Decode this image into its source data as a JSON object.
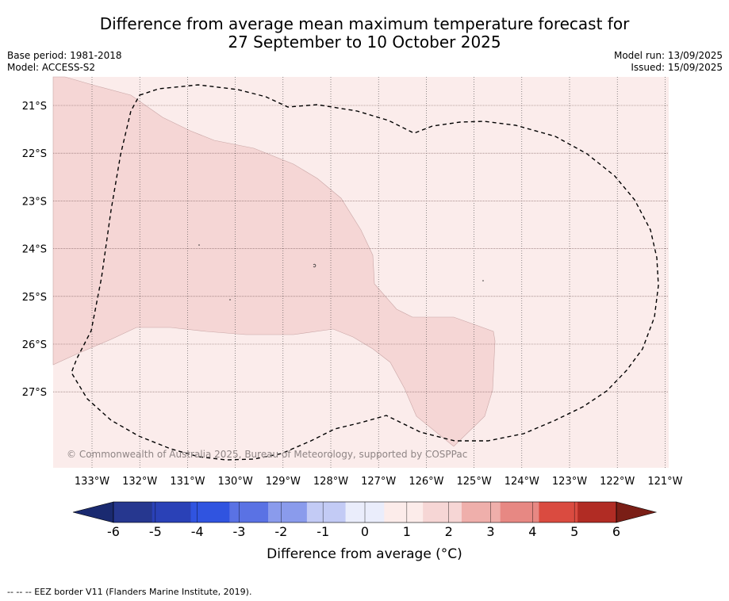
{
  "title_line1": "Difference from average mean maximum temperature forecast for",
  "title_line2": "27 September to 10 October 2025",
  "base_period": "Base period: 1981-2018",
  "model": "Model: ACCESS-S2",
  "model_run": "Model run: 13/09/2025",
  "issued": "Issued: 15/09/2025",
  "map": {
    "lon_labels": [
      "133°W",
      "132°W",
      "131°W",
      "130°W",
      "129°W",
      "128°W",
      "127°W",
      "126°W",
      "125°W",
      "124°W",
      "123°W",
      "122°W",
      "121°W"
    ],
    "lat_labels": [
      "21°S",
      "22°S",
      "23°S",
      "24°S",
      "25°S",
      "26°S",
      "27°S"
    ],
    "copyright": "© Commonwealth of Australia 2025, Bureau of Meteorology, supported by COSPPac",
    "base_fill": "#fbeceb",
    "anomaly_fill": "#f5d6d5"
  },
  "colorbar": {
    "ticks": [
      "-6",
      "-5",
      "-4",
      "-3",
      "-2",
      "-1",
      "0",
      "1",
      "2",
      "3",
      "4",
      "5",
      "6"
    ],
    "colors": [
      "#26378f",
      "#2a41b7",
      "#3054e0",
      "#5a72e4",
      "#8a9bec",
      "#c3cbf5",
      "#eaedfb",
      "#fcecea",
      "#f6d6d5",
      "#efafab",
      "#e78883",
      "#da4b40",
      "#b12c24"
    ],
    "under_color": "#1a2a70",
    "over_color": "#7a1e16",
    "label": "Difference from average (°C)"
  },
  "footer": "-- -- -- EEZ border V11 (Flanders Marine Institute, 2019)."
}
